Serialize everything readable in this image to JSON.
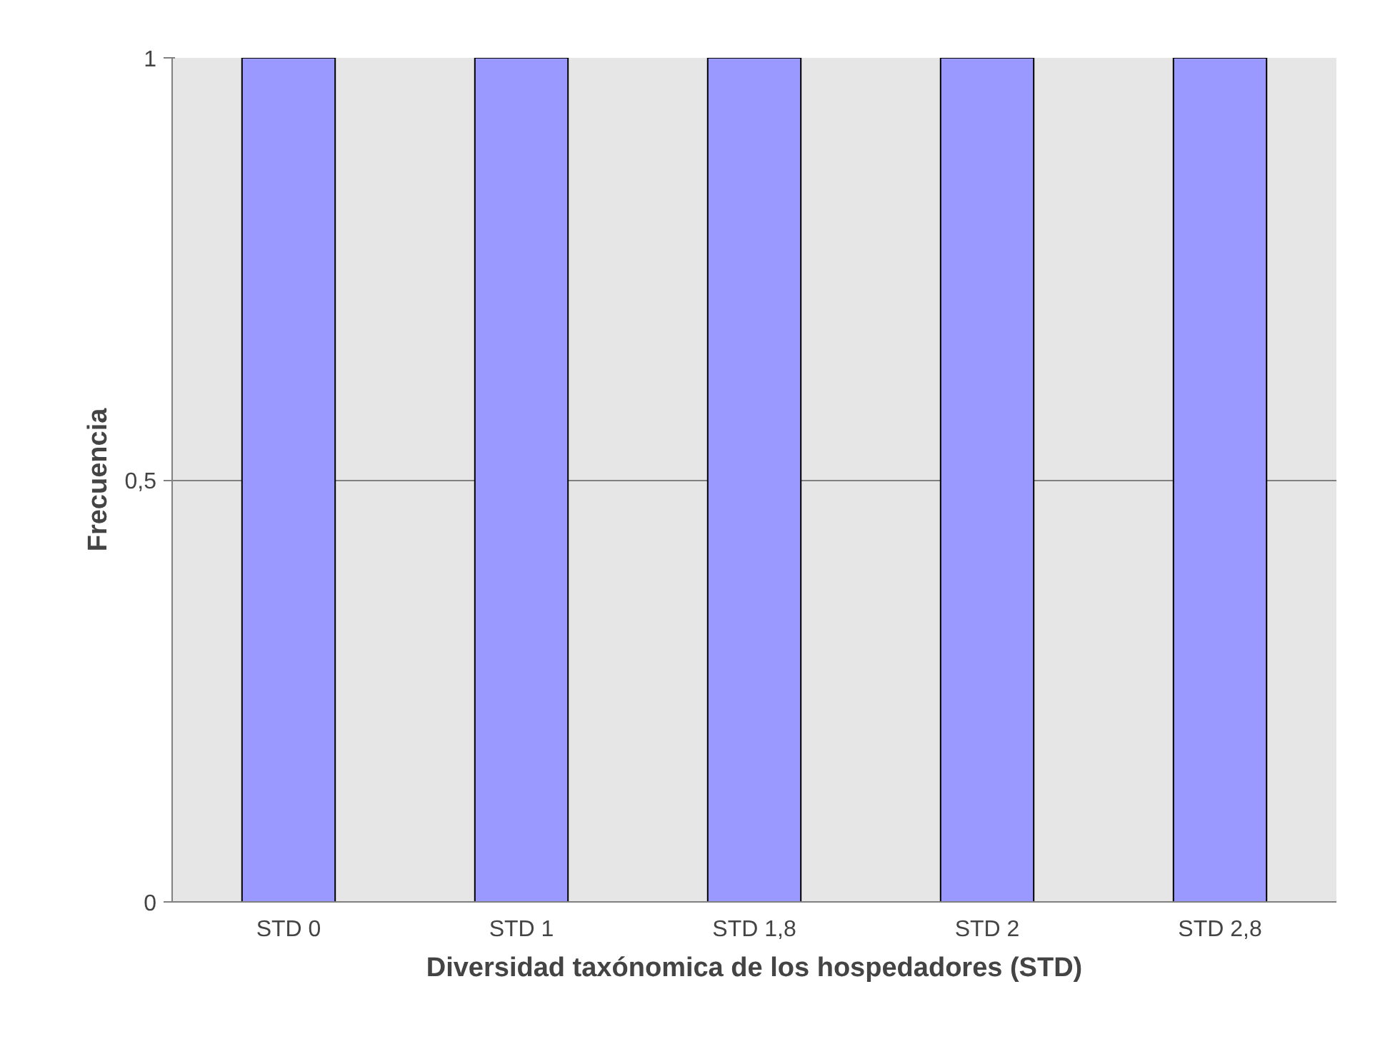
{
  "chart_data": {
    "type": "bar",
    "xlabel": "Diversidad taxónomica de los hospedadores (STD)",
    "ylabel": "Frecuencia",
    "categories": [
      "STD 0",
      "STD 1",
      "STD 1,8",
      "STD 2",
      "STD 2,8"
    ],
    "values": [
      1,
      1,
      1,
      1,
      1
    ],
    "color": "#9999ff",
    "ylim": [
      0,
      1
    ],
    "yticks": [
      0,
      {
        "value": 0.5,
        "label": "0,5"
      },
      1
    ],
    "grid": "y"
  }
}
